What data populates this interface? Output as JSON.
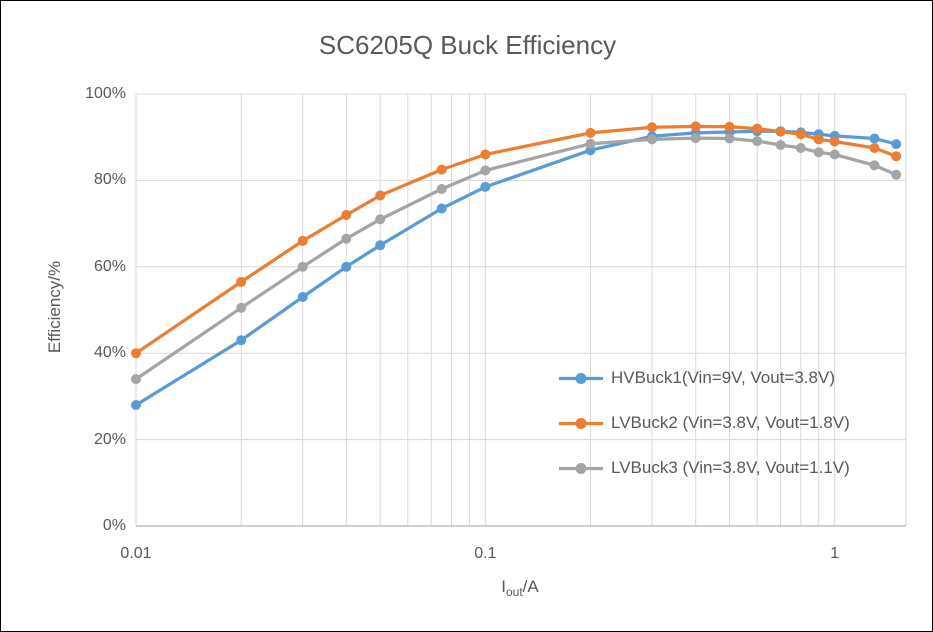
{
  "window": {
    "background": "#FFFFFF",
    "border_color": "#000000"
  },
  "chart_data": {
    "type": "line",
    "title": "SC6205Q Buck Efficiency",
    "xlabel": {
      "base": "I",
      "sub": "out",
      "unit": "/A"
    },
    "ylabel": "Efficiency/%",
    "x_scale": "log",
    "xlim": [
      0.01,
      1.6
    ],
    "ylim": [
      0,
      100
    ],
    "grid": true,
    "legend_position": "inside-right",
    "gridline_color": "#D9D9D9",
    "axis_line_color": "#BFBFBF",
    "text_color": "#595959",
    "x_ticks": [
      {
        "value": 0.01,
        "label": "0.01"
      },
      {
        "value": 0.1,
        "label": "0.1"
      },
      {
        "value": 1,
        "label": "1"
      }
    ],
    "y_ticks": [
      {
        "value": 0,
        "label": "0%"
      },
      {
        "value": 20,
        "label": "20%"
      },
      {
        "value": 40,
        "label": "40%"
      },
      {
        "value": 60,
        "label": "60%"
      },
      {
        "value": 80,
        "label": "80%"
      },
      {
        "value": 100,
        "label": "100%"
      }
    ],
    "x": [
      0.01,
      0.02,
      0.03,
      0.04,
      0.05,
      0.075,
      0.1,
      0.2,
      0.3,
      0.4,
      0.5,
      0.6,
      0.7,
      0.8,
      0.9,
      1,
      1.3,
      1.5
    ],
    "series": [
      {
        "name": "HVBuck1",
        "label": "HVBuck1(Vin=9V, Vout=3.8V)",
        "color": "#5B9BD5",
        "values": [
          28,
          43,
          53,
          60,
          65,
          73.5,
          78.5,
          87,
          90.2,
          91,
          91.2,
          91.4,
          91.4,
          91.1,
          90.7,
          90.3,
          89.7,
          88.4
        ]
      },
      {
        "name": "LVBuck2",
        "label": "LVBuck2 (Vin=3.8V, Vout=1.8V)",
        "color": "#ED7D31",
        "values": [
          40,
          56.5,
          66,
          72,
          76.5,
          82.5,
          86,
          91,
          92.3,
          92.5,
          92.4,
          92,
          91.3,
          90.7,
          89.5,
          89,
          87.5,
          85.6
        ]
      },
      {
        "name": "LVBuck3",
        "label": "LVBuck3 (Vin=3.8V, Vout=1.1V)",
        "color": "#A5A5A5",
        "values": [
          34,
          50.5,
          60,
          66.5,
          71,
          78,
          82.3,
          88.5,
          89.5,
          89.8,
          89.7,
          89.1,
          88.2,
          87.5,
          86.5,
          86,
          83.5,
          81.3
        ]
      }
    ]
  }
}
